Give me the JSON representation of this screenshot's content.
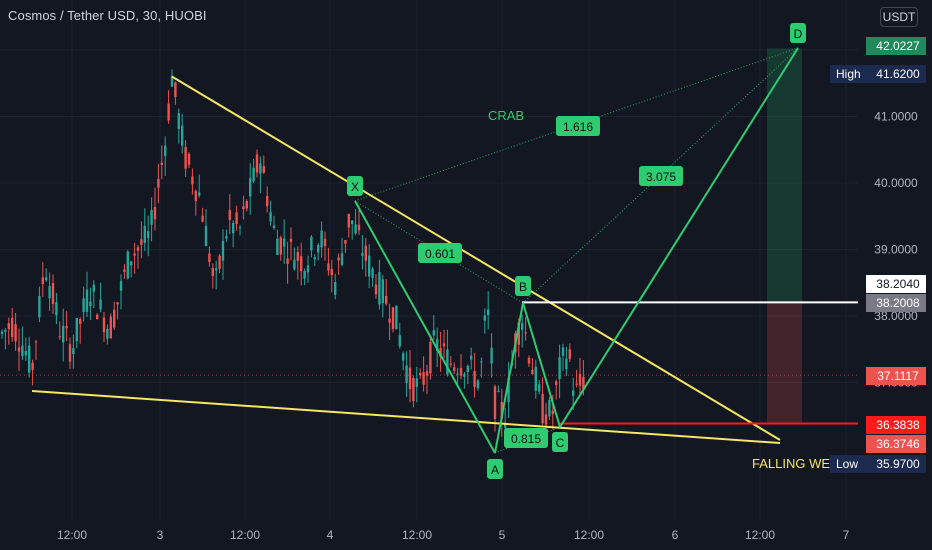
{
  "title": "Cosmos / Tether USD, 30, HUOBI",
  "currency": "USDT",
  "colors": {
    "background": "#131722",
    "grid": "#1e222d",
    "bull": "#26a69a",
    "bear": "#ef5350",
    "pattern": "#2ecc71",
    "wedge": "#f5e663",
    "target": "#1fd17a",
    "resistance": "#ffffff",
    "support": "#ff1a1a"
  },
  "chart_data": {
    "type": "candlestick",
    "ylim": [
      35.5,
      42.5
    ],
    "price_ticks": [
      "42.0000",
      "41.0000",
      "40.0000",
      "39.0000",
      "38.0000",
      "37.0000"
    ],
    "time_ticks": [
      "12:00",
      "3",
      "12:00",
      "4",
      "12:00",
      "5",
      "12:00",
      "6",
      "12:00",
      "7"
    ],
    "pattern": {
      "name": "CRAB",
      "points": [
        {
          "label": "X",
          "price": 39.7
        },
        {
          "label": "A",
          "price": 35.95
        },
        {
          "label": "B",
          "price": 38.2
        },
        {
          "label": "C",
          "price": 36.4
        },
        {
          "label": "D",
          "price": 42.0
        }
      ],
      "ratios": [
        "1.616",
        "0.601",
        "3.075",
        "0.815"
      ]
    },
    "wedge_label": "FALLING WEDGE",
    "price_labels": [
      {
        "text": "42.0227",
        "price": 42.0227,
        "kind": "target"
      },
      {
        "text": "41.6200",
        "price": 41.62,
        "kind": "high",
        "caption": "High"
      },
      {
        "text": "38.2040",
        "price": 38.204,
        "kind": "resistance-line"
      },
      {
        "text": "38.2008",
        "price": 38.2008,
        "kind": "resistance"
      },
      {
        "text": "37.1117",
        "price": 37.1117,
        "kind": "last"
      },
      {
        "text": "36.3838",
        "price": 36.3838,
        "kind": "support"
      },
      {
        "text": "36.3746",
        "price": 36.3746,
        "kind": "stop"
      },
      {
        "text": "35.9700",
        "price": 35.97,
        "kind": "low",
        "caption": "Low"
      }
    ]
  }
}
